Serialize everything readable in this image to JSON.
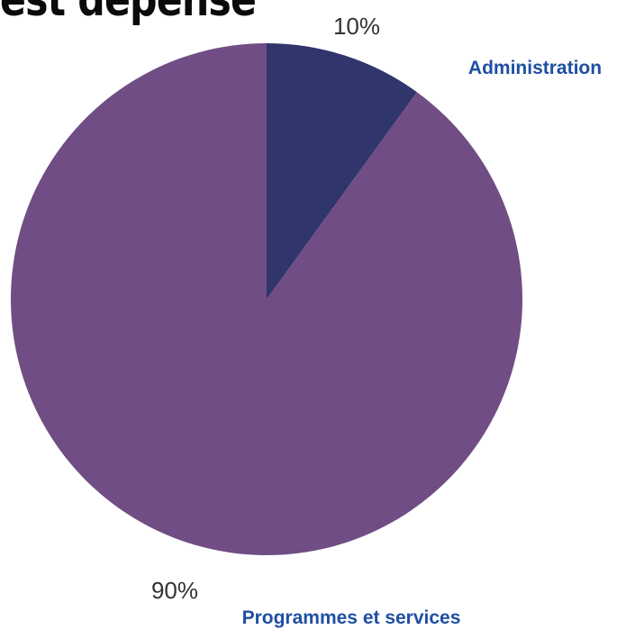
{
  "header": {
    "title_fragment": "est dépensé"
  },
  "chart_data": {
    "type": "pie",
    "title": "",
    "start_angle_deg": 0,
    "direction": "clockwise",
    "slices": [
      {
        "label": "Administration",
        "value": 10,
        "value_label": "10%",
        "color": "#30356b"
      },
      {
        "label": "Programmes et services",
        "value": 90,
        "value_label": "90%",
        "color": "#704d84"
      }
    ],
    "label_color": "#1f4fa3"
  }
}
